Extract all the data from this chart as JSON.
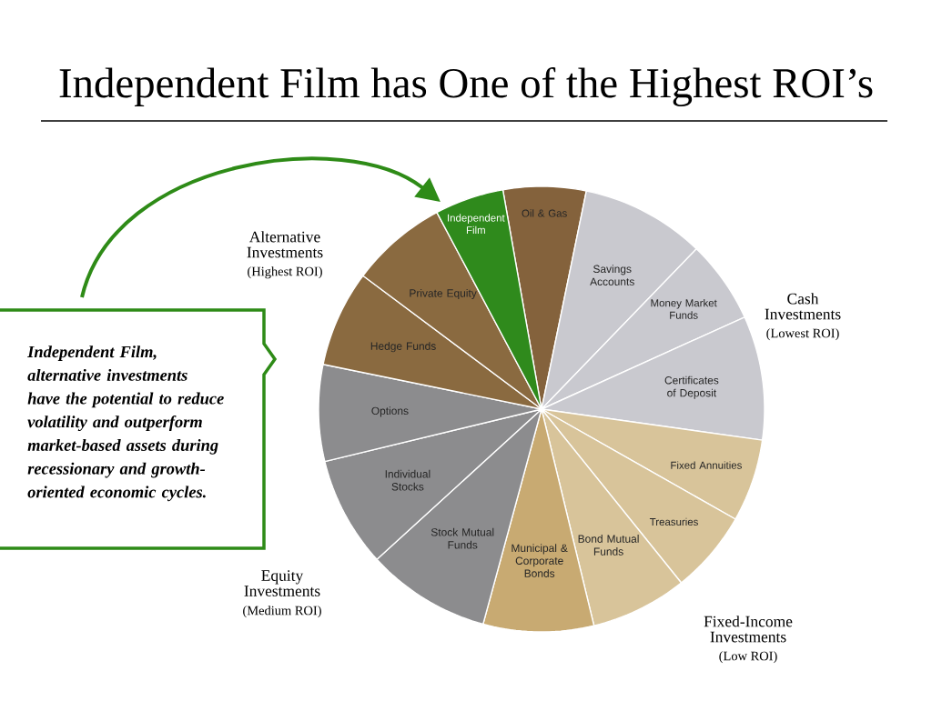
{
  "chart_data": {
    "type": "pie",
    "title": "Independent Film has One of the Highest ROI’s",
    "categories": [
      "Oil & Gas",
      "Savings Accounts",
      "Money Market Funds",
      "Certificates of Deposit",
      "Fixed Annuities",
      "Treasuries",
      "Bond Mutual Funds",
      "Municipal & Corporate Bonds",
      "Stock Mutual Funds",
      "Individual Stocks",
      "Options",
      "Hedge Funds",
      "Private Equity",
      "Independent Film"
    ],
    "values": [
      6,
      9,
      6,
      9,
      6,
      6,
      7,
      8,
      9,
      8,
      7,
      7,
      7,
      5
    ],
    "colors": [
      "#84623c",
      "#c9c9cf",
      "#c9c9cf",
      "#c9c9cf",
      "#d8c49a",
      "#d8c49a",
      "#d8c49a",
      "#c8aa72",
      "#8c8c8e",
      "#8c8c8e",
      "#8c8c8e",
      "#8a6a40",
      "#8a6a40",
      "#2f8a1c"
    ],
    "annotations": [
      "Alternative Investments",
      "(Highest ROI)",
      "Cash Investments",
      "(Lowest ROI)",
      "Equity Investments",
      "(Medium ROI)",
      "Fixed-Income Investments",
      "(Low ROI)",
      "Independent Film, alternative investments have the potential to reduce volatility and outperform market-based assets during recessionary and growth-oriented economic cycles."
    ]
  }
}
